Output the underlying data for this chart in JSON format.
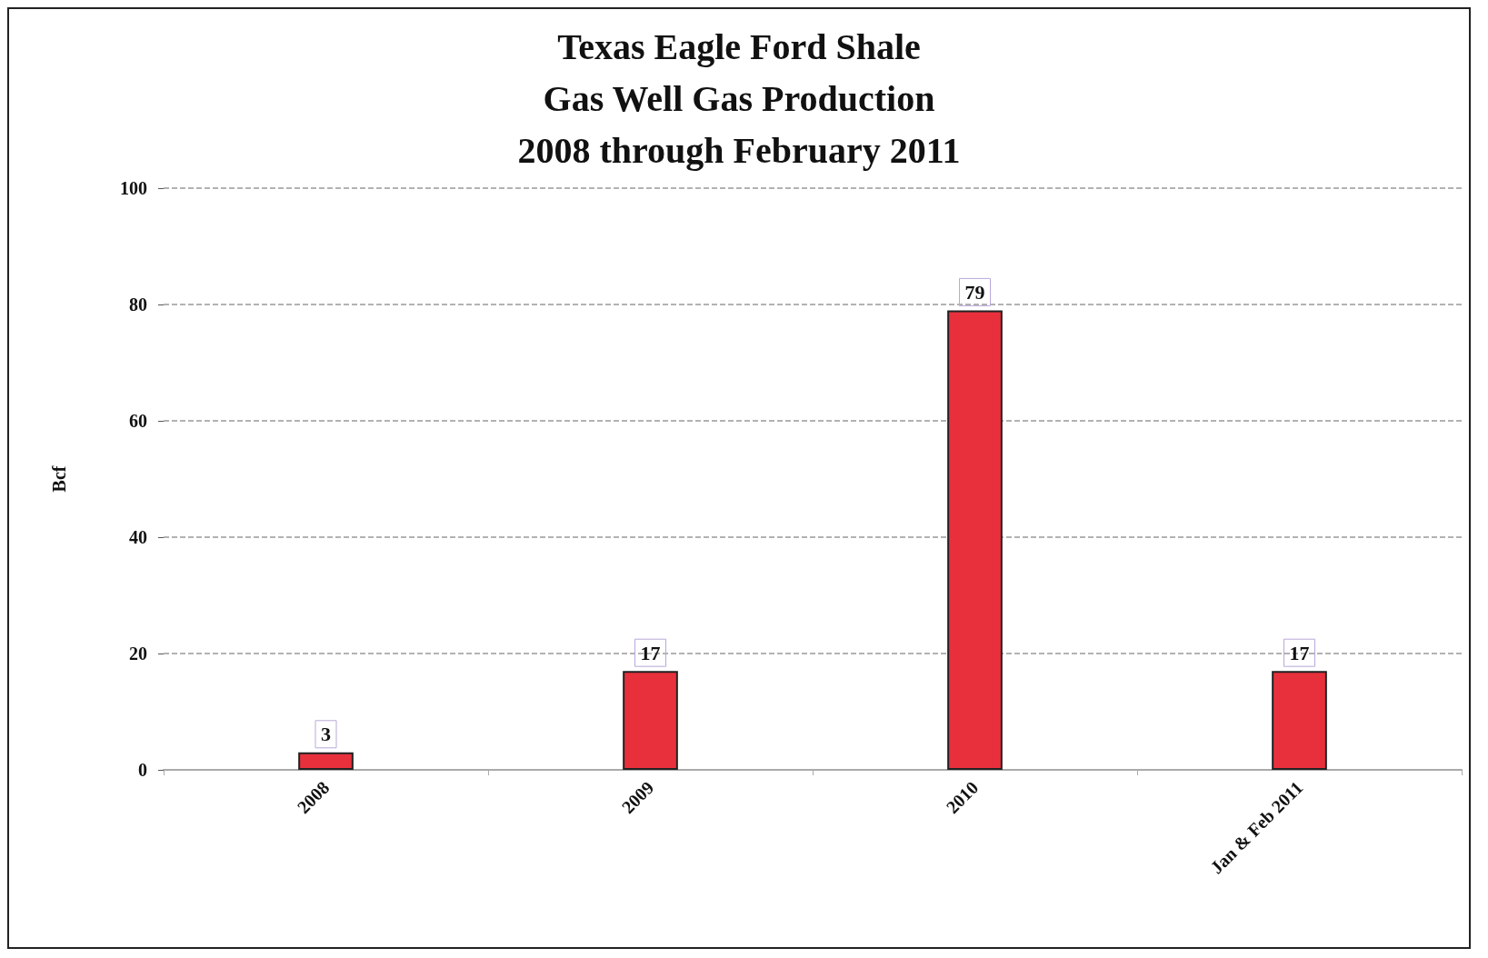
{
  "chart_data": {
    "type": "bar",
    "title": "Texas Eagle Ford Shale\nGas Well Gas Production\n2008 through February 2011",
    "ylabel": "Bcf",
    "categories": [
      "2008",
      "2009",
      "2010",
      "Jan & Feb 2011"
    ],
    "series": [
      {
        "color": "#e8303c",
        "values": [
          3,
          17,
          79,
          17
        ]
      }
    ],
    "ylim": [
      0,
      100
    ],
    "yticks": [
      0,
      20,
      40,
      60,
      80,
      100
    ],
    "grid": "y",
    "line_style": "dashed",
    "data_labels": true
  }
}
